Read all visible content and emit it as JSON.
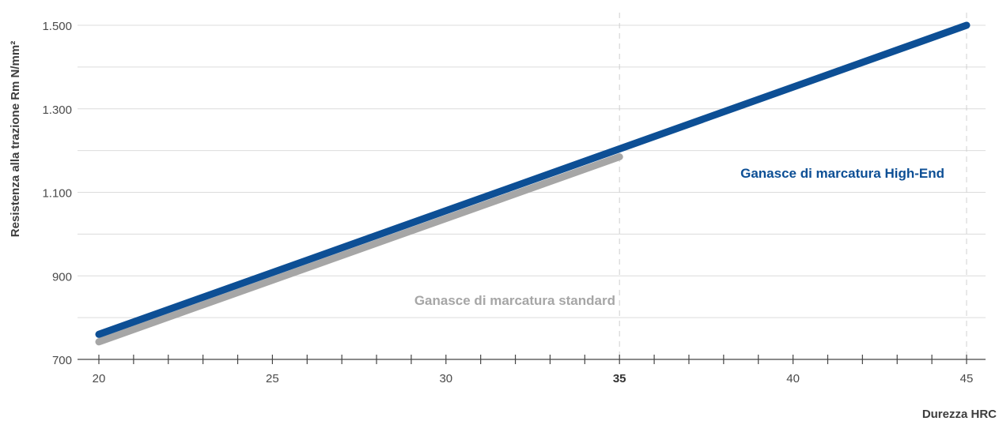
{
  "chart_data": {
    "type": "line",
    "title": "",
    "xlabel": "Durezza HRC",
    "ylabel": "Resistenza alla trazione Rm N/mm²",
    "xlim": [
      20,
      45
    ],
    "ylim": [
      700,
      1500
    ],
    "x_ticks": [
      20,
      25,
      30,
      35,
      40,
      45
    ],
    "x_tick_labels": [
      "20",
      "25",
      "30",
      "35",
      "40",
      "45"
    ],
    "x_highlight": 35,
    "y_ticks": [
      700,
      900,
      1100,
      1300,
      1500
    ],
    "y_tick_labels": [
      "700",
      "900",
      "1.100",
      "1.300",
      "1.500"
    ],
    "grid": true,
    "series": [
      {
        "name": "Ganasce di marcatura standard",
        "color": "#a6a6a6",
        "x": [
          20,
          35
        ],
        "y": [
          742,
          1185
        ]
      },
      {
        "name": "Ganasce di marcatura High-End",
        "color": "#0d4f95",
        "x": [
          20,
          45
        ],
        "y": [
          760,
          1500
        ]
      }
    ]
  }
}
